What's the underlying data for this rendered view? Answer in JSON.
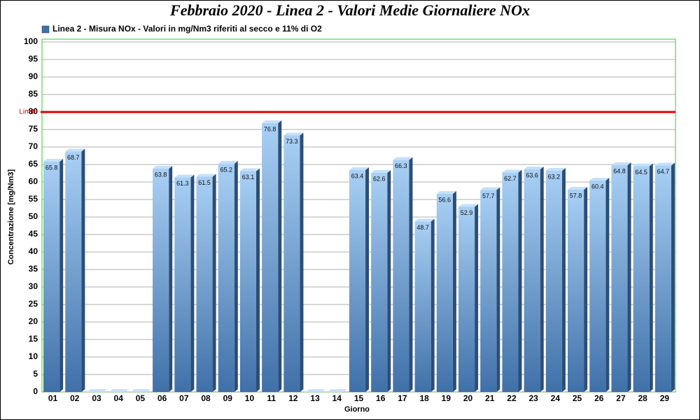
{
  "chart_data": {
    "type": "bar",
    "title": "Febbraio 2020 - Linea 2 - Valori Medie Giornaliere NOx",
    "x_label": "Giorno",
    "y_label": "Concentrazione [mg/Nm3]",
    "categories": [
      "01",
      "02",
      "03",
      "04",
      "05",
      "06",
      "07",
      "08",
      "09",
      "10",
      "11",
      "12",
      "13",
      "14",
      "15",
      "16",
      "17",
      "18",
      "19",
      "20",
      "21",
      "22",
      "23",
      "24",
      "25",
      "26",
      "27",
      "28",
      "29"
    ],
    "series": [
      {
        "name": "Linea 2 - Misura NOx - Valori in mg/Nm3 riferiti al secco e 11% di O2",
        "color": "#3f70a8",
        "values": [
          65.8,
          68.7,
          0,
          0,
          0,
          63.8,
          61.3,
          61.5,
          65.2,
          63.1,
          76.8,
          73.3,
          0,
          0,
          63.4,
          62.6,
          66.3,
          48.7,
          56.6,
          52.9,
          57.7,
          62.7,
          63.6,
          63.2,
          57.8,
          60.4,
          64.8,
          64.5,
          64.7
        ]
      }
    ],
    "ylim": [
      0,
      100
    ],
    "yticks": [
      0,
      5,
      10,
      15,
      20,
      25,
      30,
      35,
      40,
      45,
      50,
      55,
      60,
      65,
      70,
      75,
      80,
      85,
      90,
      95,
      100
    ],
    "grid": true,
    "limit": {
      "value": 80,
      "label": "Limite",
      "color": "#dd0000"
    }
  }
}
